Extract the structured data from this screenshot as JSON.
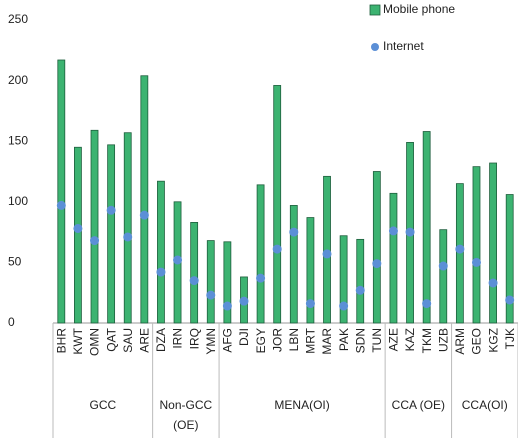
{
  "chart_data": {
    "type": "bar",
    "categories": [
      "BHR",
      "KWT",
      "OMN",
      "QAT",
      "SAU",
      "ARE",
      "DZA",
      "IRN",
      "IRQ",
      "YMN",
      "AFG",
      "DJI",
      "EGY",
      "JOR",
      "LBN",
      "MRT",
      "MAR",
      "PAK",
      "SDN",
      "TUN",
      "AZE",
      "KAZ",
      "TKM",
      "UZB",
      "ARM",
      "GEO",
      "KGZ",
      "TJK"
    ],
    "groups": [
      {
        "label": "GCC",
        "span": 6
      },
      {
        "label": "Non-GCC (OE)",
        "span": 4
      },
      {
        "label": "MENA(OI)",
        "span": 10
      },
      {
        "label": "CCA (OE)",
        "span": 4
      },
      {
        "label": "CCA(OI)",
        "span": 4
      }
    ],
    "series": [
      {
        "name": "Mobile phone",
        "type": "bar",
        "color": "#3cb371",
        "values": [
          217,
          145,
          159,
          147,
          157,
          204,
          117,
          100,
          83,
          68,
          67,
          38,
          114,
          196,
          97,
          87,
          121,
          72,
          69,
          125,
          107,
          149,
          158,
          77,
          115,
          129,
          132,
          106
        ]
      },
      {
        "name": "Internet",
        "type": "scatter",
        "color": "#5b8fd6",
        "values": [
          97,
          78,
          68,
          93,
          71,
          89,
          42,
          52,
          35,
          23,
          14,
          18,
          37,
          61,
          75,
          16,
          57,
          14,
          27,
          49,
          76,
          75,
          16,
          47,
          61,
          50,
          33,
          19
        ]
      }
    ],
    "ylim": [
      0,
      250
    ],
    "yticks": [
      0,
      50,
      100,
      150,
      200,
      250
    ],
    "grid": false,
    "legend": "top-right"
  }
}
